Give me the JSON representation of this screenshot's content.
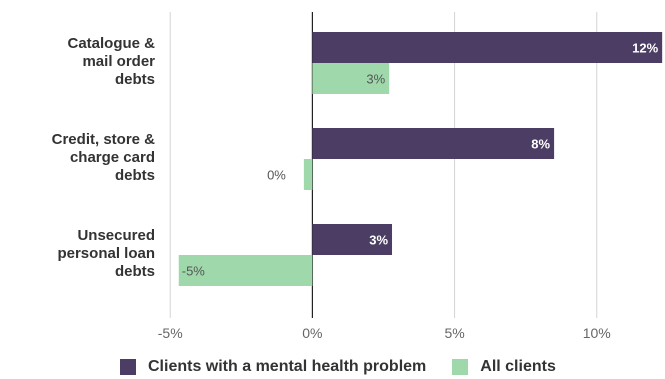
{
  "chart_data": {
    "type": "bar",
    "orientation": "horizontal",
    "categories": [
      "Catalogue & mail order debts",
      "Credit, store & charge card debts",
      "Unsecured personal loan debts"
    ],
    "category_lines": [
      [
        "Catalogue &",
        "mail order",
        "debts"
      ],
      [
        "Credit, store &",
        "charge card",
        "debts"
      ],
      [
        "Unsecured",
        "personal loan",
        "debts"
      ]
    ],
    "series": [
      {
        "name": "Clients with a mental health problem",
        "values": [
          12.3,
          8.5,
          2.8
        ],
        "labels": [
          "12%",
          "8%",
          "3%"
        ],
        "color": "#4b3d63"
      },
      {
        "name": "All clients",
        "values": [
          2.7,
          -0.3,
          -4.7
        ],
        "labels": [
          "3%",
          "0%",
          "-5%"
        ],
        "color": "#9fd9ab"
      }
    ],
    "x_ticks": [
      -5,
      0,
      5,
      10
    ],
    "x_tick_labels": [
      "-5%",
      "0%",
      "5%",
      "10%"
    ],
    "xlim": [
      -5.5,
      12.4
    ],
    "grid": true,
    "legend": "bottom"
  }
}
